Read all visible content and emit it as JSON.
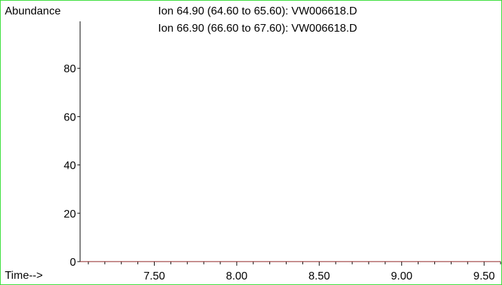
{
  "chart_data": {
    "type": "line",
    "ylabel": "Abundance",
    "xlabel": "Time-->",
    "xlim": [
      7.05,
      9.6
    ],
    "ylim": [
      0,
      100
    ],
    "x_ticks": {
      "major": [
        7.5,
        8.0,
        8.5,
        9.0,
        9.5
      ],
      "labels": [
        "7.50",
        "8.00",
        "8.50",
        "9.00",
        "9.50"
      ],
      "minor_step": 0.1,
      "minor_start": 7.1
    },
    "y_ticks": {
      "values": [
        0,
        20,
        40,
        60,
        80
      ],
      "labels": [
        "0",
        "20",
        "40",
        "60",
        "80"
      ]
    },
    "legend_placement": "top-center",
    "series": [
      {
        "name": "Ion  64.90 (64.60 to 65.60): VW006618.D",
        "color": "#000000",
        "x": [
          7.05,
          9.6
        ],
        "y": [
          0,
          0
        ]
      },
      {
        "name": "Ion  66.90 (66.60 to 67.60): VW006618.D",
        "color": "#8b1a1a",
        "x": [
          7.05,
          9.6
        ],
        "y": [
          0,
          0
        ]
      }
    ]
  }
}
